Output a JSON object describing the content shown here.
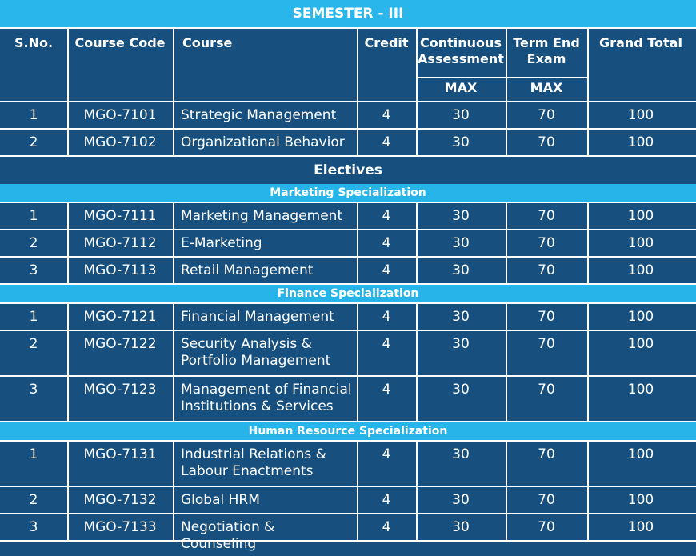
{
  "title": "SEMESTER - III",
  "headers": {
    "sno": "S.No.",
    "code": "Course Code",
    "course": "Course",
    "credit": "Credit",
    "ca": "Continuous Assessment",
    "te": "Term End Exam",
    "gt": "Grand Total",
    "max1": "MAX",
    "max2": "MAX"
  },
  "core": [
    {
      "sno": "1",
      "code": "MGO-7101",
      "course": "Strategic Management",
      "credit": "4",
      "ca": "30",
      "te": "70",
      "gt": "100"
    },
    {
      "sno": "2",
      "code": "MGO-7102",
      "course": "Organizational Behavior",
      "credit": "4",
      "ca": "30",
      "te": "70",
      "gt": "100"
    }
  ],
  "electives_label": "Electives",
  "sections": [
    {
      "name": "Marketing Specialization",
      "rows": [
        {
          "sno": "1",
          "code": "MGO-7111",
          "course": "Marketing Management",
          "credit": "4",
          "ca": "30",
          "te": "70",
          "gt": "100"
        },
        {
          "sno": "2",
          "code": "MGO-7112",
          "course": "E-Marketing",
          "credit": "4",
          "ca": "30",
          "te": "70",
          "gt": "100"
        },
        {
          "sno": "3",
          "code": "MGO-7113",
          "course": "Retail Management",
          "credit": "4",
          "ca": "30",
          "te": "70",
          "gt": "100"
        }
      ]
    },
    {
      "name": "Finance Specialization",
      "rows": [
        {
          "sno": "1",
          "code": "MGO-7121",
          "course": "Financial Management",
          "credit": "4",
          "ca": "30",
          "te": "70",
          "gt": "100"
        },
        {
          "sno": "2",
          "code": "MGO-7122",
          "course": "Security Analysis & Portfolio Management",
          "credit": "4",
          "ca": "30",
          "te": "70",
          "gt": "100"
        },
        {
          "sno": "3",
          "code": "MGO-7123",
          "course": "Management of Financial Institutions & Services",
          "credit": "4",
          "ca": "30",
          "te": "70",
          "gt": "100"
        }
      ]
    },
    {
      "name": "Human Resource Specialization",
      "rows": [
        {
          "sno": "1",
          "code": "MGO-7131",
          "course": "Industrial Relations & Labour Enactments",
          "credit": "4",
          "ca": "30",
          "te": "70",
          "gt": "100"
        },
        {
          "sno": "2",
          "code": "MGO-7132",
          "course": "Global HRM",
          "credit": "4",
          "ca": "30",
          "te": "70",
          "gt": "100"
        },
        {
          "sno": "3",
          "code": "MGO-7133",
          "course": "Negotiation & Counseling",
          "credit": "4",
          "ca": "30",
          "te": "70",
          "gt": "100"
        }
      ]
    }
  ],
  "colors": {
    "dark_blue": "#17507f",
    "light_blue": "#29b6ea",
    "line": "#ffffff"
  }
}
